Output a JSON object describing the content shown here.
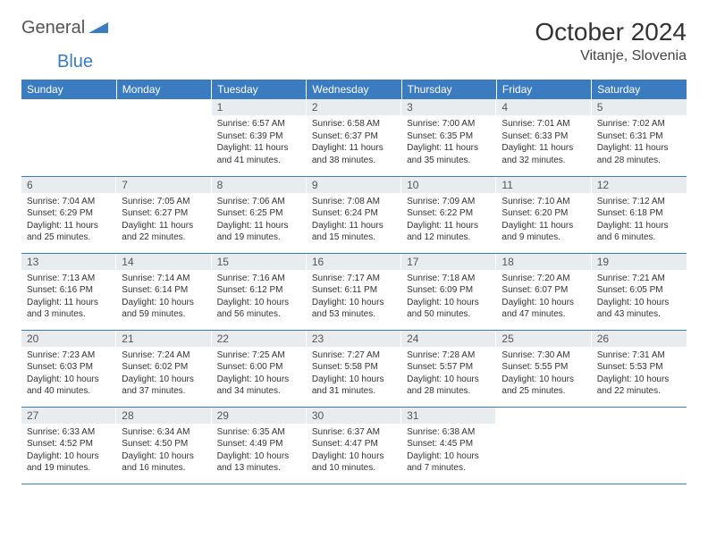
{
  "brand": {
    "part1": "General",
    "part2": "Blue"
  },
  "title": "October 2024",
  "location": "Vitanje, Slovenia",
  "colors": {
    "header_bg": "#3b7bbf",
    "header_text": "#ffffff",
    "daynum_bg": "#e9ecef",
    "row_border": "#3b7bbf",
    "text": "#333333",
    "brand_gray": "#555555",
    "brand_blue": "#3b7bbf"
  },
  "weekdays": [
    "Sunday",
    "Monday",
    "Tuesday",
    "Wednesday",
    "Thursday",
    "Friday",
    "Saturday"
  ],
  "weeks": [
    [
      {
        "day": "",
        "sunrise": "",
        "sunset": "",
        "daylight": ""
      },
      {
        "day": "",
        "sunrise": "",
        "sunset": "",
        "daylight": ""
      },
      {
        "day": "1",
        "sunrise": "Sunrise: 6:57 AM",
        "sunset": "Sunset: 6:39 PM",
        "daylight": "Daylight: 11 hours and 41 minutes."
      },
      {
        "day": "2",
        "sunrise": "Sunrise: 6:58 AM",
        "sunset": "Sunset: 6:37 PM",
        "daylight": "Daylight: 11 hours and 38 minutes."
      },
      {
        "day": "3",
        "sunrise": "Sunrise: 7:00 AM",
        "sunset": "Sunset: 6:35 PM",
        "daylight": "Daylight: 11 hours and 35 minutes."
      },
      {
        "day": "4",
        "sunrise": "Sunrise: 7:01 AM",
        "sunset": "Sunset: 6:33 PM",
        "daylight": "Daylight: 11 hours and 32 minutes."
      },
      {
        "day": "5",
        "sunrise": "Sunrise: 7:02 AM",
        "sunset": "Sunset: 6:31 PM",
        "daylight": "Daylight: 11 hours and 28 minutes."
      }
    ],
    [
      {
        "day": "6",
        "sunrise": "Sunrise: 7:04 AM",
        "sunset": "Sunset: 6:29 PM",
        "daylight": "Daylight: 11 hours and 25 minutes."
      },
      {
        "day": "7",
        "sunrise": "Sunrise: 7:05 AM",
        "sunset": "Sunset: 6:27 PM",
        "daylight": "Daylight: 11 hours and 22 minutes."
      },
      {
        "day": "8",
        "sunrise": "Sunrise: 7:06 AM",
        "sunset": "Sunset: 6:25 PM",
        "daylight": "Daylight: 11 hours and 19 minutes."
      },
      {
        "day": "9",
        "sunrise": "Sunrise: 7:08 AM",
        "sunset": "Sunset: 6:24 PM",
        "daylight": "Daylight: 11 hours and 15 minutes."
      },
      {
        "day": "10",
        "sunrise": "Sunrise: 7:09 AM",
        "sunset": "Sunset: 6:22 PM",
        "daylight": "Daylight: 11 hours and 12 minutes."
      },
      {
        "day": "11",
        "sunrise": "Sunrise: 7:10 AM",
        "sunset": "Sunset: 6:20 PM",
        "daylight": "Daylight: 11 hours and 9 minutes."
      },
      {
        "day": "12",
        "sunrise": "Sunrise: 7:12 AM",
        "sunset": "Sunset: 6:18 PM",
        "daylight": "Daylight: 11 hours and 6 minutes."
      }
    ],
    [
      {
        "day": "13",
        "sunrise": "Sunrise: 7:13 AM",
        "sunset": "Sunset: 6:16 PM",
        "daylight": "Daylight: 11 hours and 3 minutes."
      },
      {
        "day": "14",
        "sunrise": "Sunrise: 7:14 AM",
        "sunset": "Sunset: 6:14 PM",
        "daylight": "Daylight: 10 hours and 59 minutes."
      },
      {
        "day": "15",
        "sunrise": "Sunrise: 7:16 AM",
        "sunset": "Sunset: 6:12 PM",
        "daylight": "Daylight: 10 hours and 56 minutes."
      },
      {
        "day": "16",
        "sunrise": "Sunrise: 7:17 AM",
        "sunset": "Sunset: 6:11 PM",
        "daylight": "Daylight: 10 hours and 53 minutes."
      },
      {
        "day": "17",
        "sunrise": "Sunrise: 7:18 AM",
        "sunset": "Sunset: 6:09 PM",
        "daylight": "Daylight: 10 hours and 50 minutes."
      },
      {
        "day": "18",
        "sunrise": "Sunrise: 7:20 AM",
        "sunset": "Sunset: 6:07 PM",
        "daylight": "Daylight: 10 hours and 47 minutes."
      },
      {
        "day": "19",
        "sunrise": "Sunrise: 7:21 AM",
        "sunset": "Sunset: 6:05 PM",
        "daylight": "Daylight: 10 hours and 43 minutes."
      }
    ],
    [
      {
        "day": "20",
        "sunrise": "Sunrise: 7:23 AM",
        "sunset": "Sunset: 6:03 PM",
        "daylight": "Daylight: 10 hours and 40 minutes."
      },
      {
        "day": "21",
        "sunrise": "Sunrise: 7:24 AM",
        "sunset": "Sunset: 6:02 PM",
        "daylight": "Daylight: 10 hours and 37 minutes."
      },
      {
        "day": "22",
        "sunrise": "Sunrise: 7:25 AM",
        "sunset": "Sunset: 6:00 PM",
        "daylight": "Daylight: 10 hours and 34 minutes."
      },
      {
        "day": "23",
        "sunrise": "Sunrise: 7:27 AM",
        "sunset": "Sunset: 5:58 PM",
        "daylight": "Daylight: 10 hours and 31 minutes."
      },
      {
        "day": "24",
        "sunrise": "Sunrise: 7:28 AM",
        "sunset": "Sunset: 5:57 PM",
        "daylight": "Daylight: 10 hours and 28 minutes."
      },
      {
        "day": "25",
        "sunrise": "Sunrise: 7:30 AM",
        "sunset": "Sunset: 5:55 PM",
        "daylight": "Daylight: 10 hours and 25 minutes."
      },
      {
        "day": "26",
        "sunrise": "Sunrise: 7:31 AM",
        "sunset": "Sunset: 5:53 PM",
        "daylight": "Daylight: 10 hours and 22 minutes."
      }
    ],
    [
      {
        "day": "27",
        "sunrise": "Sunrise: 6:33 AM",
        "sunset": "Sunset: 4:52 PM",
        "daylight": "Daylight: 10 hours and 19 minutes."
      },
      {
        "day": "28",
        "sunrise": "Sunrise: 6:34 AM",
        "sunset": "Sunset: 4:50 PM",
        "daylight": "Daylight: 10 hours and 16 minutes."
      },
      {
        "day": "29",
        "sunrise": "Sunrise: 6:35 AM",
        "sunset": "Sunset: 4:49 PM",
        "daylight": "Daylight: 10 hours and 13 minutes."
      },
      {
        "day": "30",
        "sunrise": "Sunrise: 6:37 AM",
        "sunset": "Sunset: 4:47 PM",
        "daylight": "Daylight: 10 hours and 10 minutes."
      },
      {
        "day": "31",
        "sunrise": "Sunrise: 6:38 AM",
        "sunset": "Sunset: 4:45 PM",
        "daylight": "Daylight: 10 hours and 7 minutes."
      },
      {
        "day": "",
        "sunrise": "",
        "sunset": "",
        "daylight": ""
      },
      {
        "day": "",
        "sunrise": "",
        "sunset": "",
        "daylight": ""
      }
    ]
  ]
}
